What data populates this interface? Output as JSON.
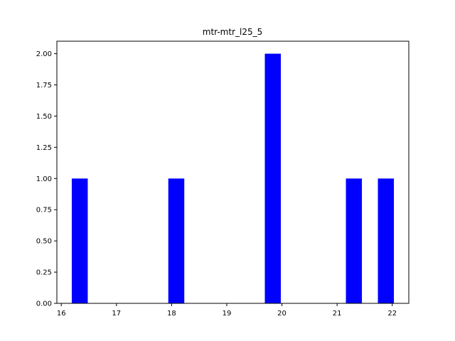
{
  "chart_data": {
    "type": "bar",
    "title": "mtr-mtr_l25_5",
    "xlabel": "",
    "ylabel": "",
    "xlim": [
      15.92,
      22.3
    ],
    "ylim": [
      0,
      2.1
    ],
    "bar_color": "#0000ff",
    "bars": [
      {
        "x0": 16.19,
        "x1": 16.48,
        "value": 1
      },
      {
        "x0": 17.94,
        "x1": 18.23,
        "value": 1
      },
      {
        "x0": 19.69,
        "x1": 19.98,
        "value": 2
      },
      {
        "x0": 21.16,
        "x1": 21.45,
        "value": 1
      },
      {
        "x0": 21.74,
        "x1": 22.03,
        "value": 1
      }
    ],
    "x_ticks": [
      {
        "value": 16,
        "label": "16"
      },
      {
        "value": 17,
        "label": "17"
      },
      {
        "value": 18,
        "label": "18"
      },
      {
        "value": 19,
        "label": "19"
      },
      {
        "value": 20,
        "label": "20"
      },
      {
        "value": 21,
        "label": "21"
      },
      {
        "value": 22,
        "label": "22"
      }
    ],
    "y_ticks": [
      {
        "value": 0,
        "label": "0.00"
      },
      {
        "value": 0.25,
        "label": "0.25"
      },
      {
        "value": 0.5,
        "label": "0.50"
      },
      {
        "value": 0.75,
        "label": "0.75"
      },
      {
        "value": 1.0,
        "label": "1.00"
      },
      {
        "value": 1.25,
        "label": "1.25"
      },
      {
        "value": 1.5,
        "label": "1.50"
      },
      {
        "value": 1.75,
        "label": "1.75"
      },
      {
        "value": 2.0,
        "label": "2.00"
      }
    ],
    "grid": false,
    "legend": "none"
  }
}
